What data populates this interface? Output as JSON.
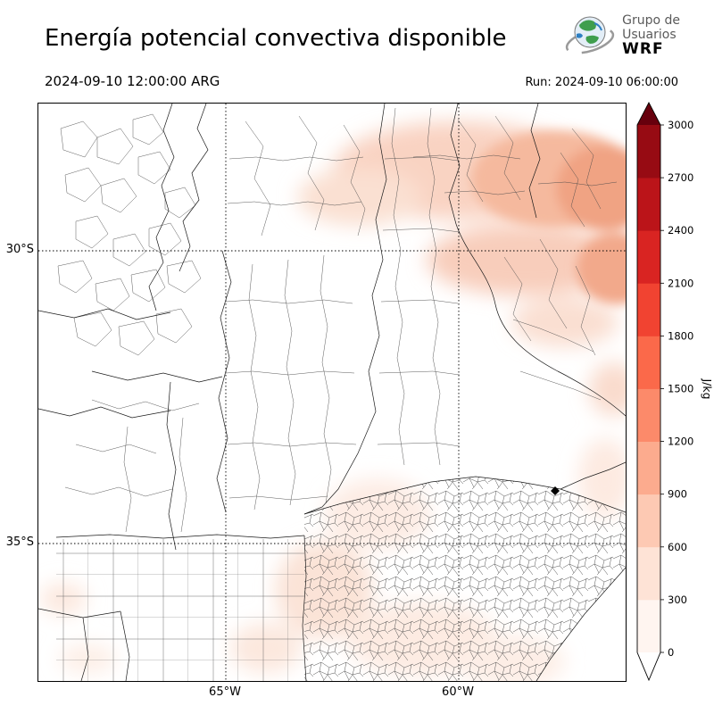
{
  "header": {
    "title": "Energía potencial convectiva disponible",
    "valid_time": "2024-09-10 12:00:00 ARG",
    "run_label": "Run: 2024-09-10 06:00:00",
    "logo": {
      "line1": "Grupo de",
      "line2": "Usuarios",
      "line3": "WRF"
    }
  },
  "map": {
    "lat_labels": [
      "30°S",
      "35°S"
    ],
    "lon_labels": [
      "65°W",
      "60°W"
    ]
  },
  "colorbar": {
    "unit": "J/kg",
    "ticks": [
      0,
      300,
      600,
      900,
      1200,
      1500,
      1800,
      2100,
      2400,
      2700,
      3000
    ],
    "colors": [
      "#fff5f0",
      "#fee3d6",
      "#fdc9b3",
      "#fcab8e",
      "#fc8a6a",
      "#fb694a",
      "#f14331",
      "#d92422",
      "#bb1419",
      "#970b13"
    ],
    "under_color": "#ffffff",
    "over_color": "#67000d"
  },
  "chart_data": {
    "type": "heatmap",
    "title": "Energía potencial convectiva disponible",
    "valid_time": "2024-09-10 12:00:00 ARG",
    "run": "2024-09-10 06:00:00",
    "unit": "J/kg",
    "colorbar_ticks": [
      0,
      300,
      600,
      900,
      1200,
      1500,
      1800,
      2100,
      2400,
      2700,
      3000
    ],
    "lat_ticks": [
      "30°S",
      "35°S"
    ],
    "lon_ticks": [
      "65°W",
      "60°W"
    ],
    "shading_summary": "Light-to-moderate CAPE shading over the northeast of the domain (strongest near the NE corner), light patches along the eastern edge, over the south-central area and near the SW edge; rest of domain near 0."
  }
}
